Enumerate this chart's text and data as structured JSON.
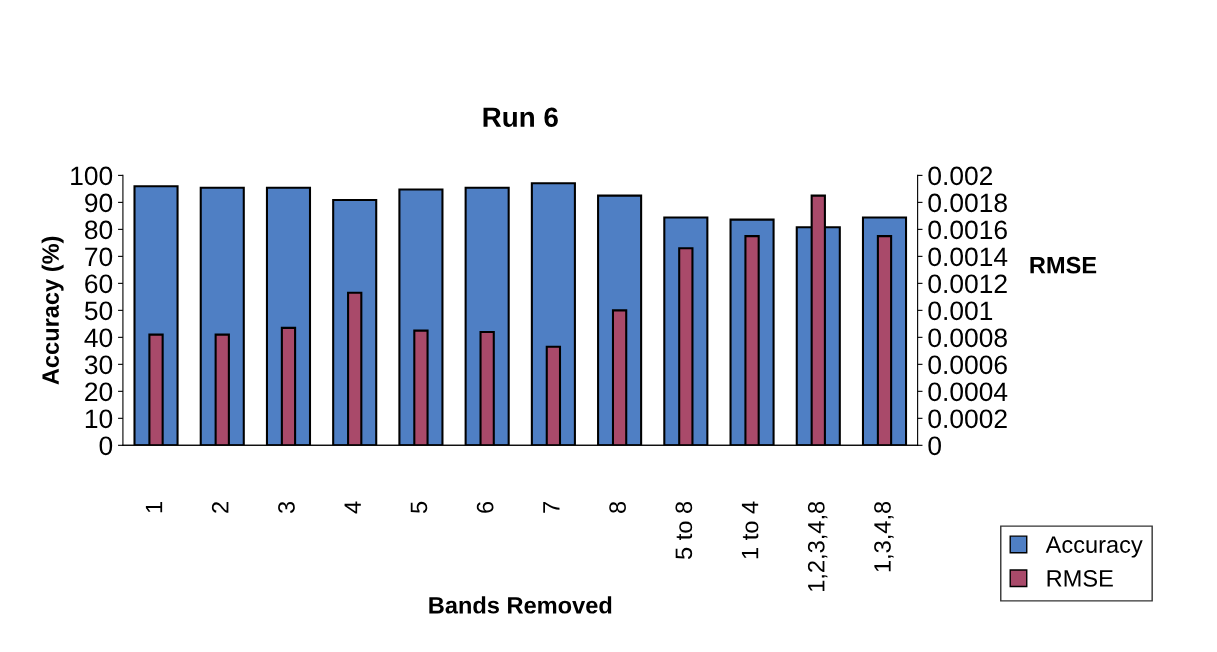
{
  "chart_data": {
    "type": "bar",
    "title": "Run 6",
    "xlabel": "Bands Removed",
    "ylabel": "Accuracy (%)",
    "y2label": "RMSE",
    "categories": [
      "1",
      "2",
      "3",
      "4",
      "5",
      "6",
      "7",
      "8",
      "5 to 8",
      "1 to 4",
      "1,2,3,4,8",
      "1,3,4,8"
    ],
    "series": [
      {
        "name": "Accuracy",
        "color": "#4f7fc4",
        "values": [
          96.0,
          95.4,
          95.4,
          90.9,
          94.8,
          95.4,
          97.1,
          92.5,
          84.4,
          83.6,
          80.8,
          84.4
        ]
      },
      {
        "name": "RMSE",
        "color": "#a94a6a",
        "axis": "y2",
        "values": [
          0.00082,
          0.00082,
          0.00087,
          0.00113,
          0.00085,
          0.00084,
          0.00073,
          0.001,
          0.00146,
          0.00155,
          0.00185,
          0.00155
        ]
      }
    ],
    "ylim": [
      0,
      100
    ],
    "yticks": [
      0,
      10,
      20,
      30,
      40,
      50,
      60,
      70,
      80,
      90,
      100
    ],
    "y2lim": [
      0,
      0.002
    ],
    "y2ticks": [
      {
        "value": 0,
        "label": "0"
      },
      {
        "value": 0.0002,
        "label": "0.0002"
      },
      {
        "value": 0.0004,
        "label": "0.0004"
      },
      {
        "value": 0.0006,
        "label": "0.0006"
      },
      {
        "value": 0.0008,
        "label": "0.0008"
      },
      {
        "value": 0.001,
        "label": "0.001"
      },
      {
        "value": 0.0012,
        "label": "0.0012"
      },
      {
        "value": 0.0014,
        "label": "0.0014"
      },
      {
        "value": 0.0016,
        "label": "0.0016"
      },
      {
        "value": 0.0018,
        "label": "0.0018"
      },
      {
        "value": 0.002,
        "label": "0.002"
      }
    ],
    "legend": "bottom right",
    "grid": false
  }
}
